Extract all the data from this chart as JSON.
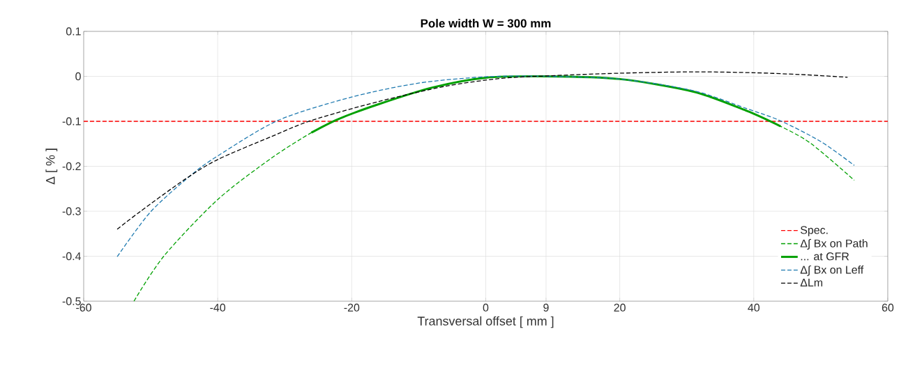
{
  "chart_data": {
    "type": "line",
    "title": "Pole width W = 300 mm",
    "xlabel": "Transversal offset  [ mm ]",
    "ylabel": "Δ  [ % ]",
    "xlim": [
      -60,
      60
    ],
    "xticks": [
      -60,
      -40,
      -20,
      0,
      9,
      20,
      40,
      60
    ],
    "ylim": [
      -0.5,
      0.1
    ],
    "yticks": [
      -0.5,
      -0.4,
      -0.3,
      -0.2,
      -0.1,
      0,
      0.1
    ],
    "grid": true,
    "legend": "bottom right",
    "marker": "none",
    "ref_lines": [
      {
        "axis": "y",
        "value": -0.1,
        "label": "Spec.",
        "color": "#ff0000",
        "line_style": "dashed"
      }
    ],
    "series": [
      {
        "name": "Δ∫ Bx on Path",
        "color": "#00a000",
        "line_style": "dashed",
        "x": [
          -52.5,
          -48,
          -40,
          -32,
          -26,
          -22,
          -16,
          -8,
          0,
          9,
          20,
          31,
          39,
          44,
          48.5,
          55
        ],
        "values": [
          -0.5,
          -0.399,
          -0.274,
          -0.182,
          -0.125,
          -0.095,
          -0.062,
          -0.025,
          -0.003,
          0,
          -0.006,
          -0.034,
          -0.077,
          -0.111,
          -0.149,
          -0.231
        ]
      },
      {
        "name": "... at GFR",
        "color": "#00a000",
        "line_style": "solid",
        "x": [
          -26,
          -22,
          -16,
          -8,
          0,
          9,
          20,
          31,
          39,
          44
        ],
        "values": [
          -0.125,
          -0.095,
          -0.062,
          -0.025,
          -0.003,
          0,
          -0.006,
          -0.034,
          -0.077,
          -0.111
        ]
      },
      {
        "name": "Δ∫ Bx on Leff",
        "color": "#1f7ab0",
        "line_style": "dashed",
        "x": [
          -55,
          -50,
          -44,
          -40,
          -31,
          -20,
          -10,
          0,
          9,
          20,
          31,
          39,
          44,
          50,
          55
        ],
        "values": [
          -0.401,
          -0.301,
          -0.22,
          -0.177,
          -0.098,
          -0.046,
          -0.015,
          -0.001,
          0,
          -0.006,
          -0.032,
          -0.072,
          -0.099,
          -0.145,
          -0.198
        ]
      },
      {
        "name": "ΔLm",
        "color": "#000000",
        "line_style": "dashed",
        "x": [
          -55,
          -51.6,
          -45,
          -40,
          -32,
          -26,
          -16,
          -6,
          2,
          9,
          20,
          31,
          40,
          47,
          54
        ],
        "values": [
          -0.34,
          -0.301,
          -0.23,
          -0.185,
          -0.134,
          -0.098,
          -0.056,
          -0.022,
          -0.005,
          0.001,
          0.007,
          0.01,
          0.008,
          0.004,
          -0.002
        ]
      }
    ]
  }
}
